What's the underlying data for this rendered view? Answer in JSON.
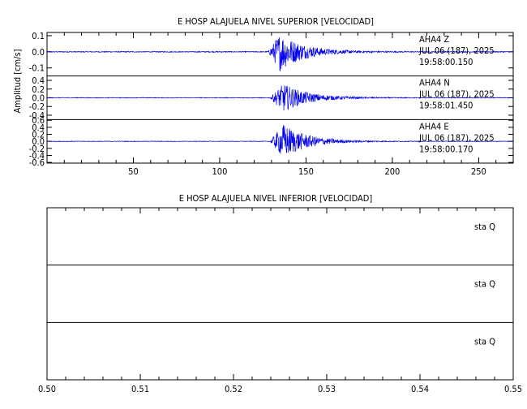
{
  "chart_data": [
    {
      "type": "line",
      "title": "E HOSP ALAJUELA NIVEL SUPERIOR [VELOCIDAD]",
      "ylabel": "Amplitud [cm/s]",
      "xlim": [
        0,
        270
      ],
      "x_ticks": [
        "50",
        "100",
        "150",
        "200",
        "250"
      ],
      "x_tick_values": [
        50,
        100,
        150,
        200,
        250
      ],
      "traces": [
        {
          "station": "AHA4",
          "component": "Z",
          "date": "JUL 06 (187), 2025",
          "time": "19:58:00.150",
          "ylim": [
            -0.15,
            0.12
          ],
          "y_ticks": [
            "0.1",
            "0.0",
            "-0.1"
          ],
          "y_tick_values": [
            0.1,
            0.0,
            -0.1
          ],
          "onset_x": 128,
          "peak_x": 135,
          "peak_amplitude": 0.12,
          "noise_amplitude": 0.003,
          "coda_end_x": 215
        },
        {
          "station": "AHA4",
          "component": "N",
          "date": "JUL 06 (187), 2025",
          "time": "19:58:01.450",
          "ylim": [
            -0.5,
            0.5
          ],
          "y_ticks": [
            "0.4",
            "0.2",
            "0.0",
            "-0.2",
            "-0.4"
          ],
          "y_tick_values": [
            0.4,
            0.2,
            0.0,
            -0.2,
            -0.4
          ],
          "onset_x": 129,
          "peak_x": 137,
          "peak_amplitude": 0.33,
          "noise_amplitude": 0.008,
          "coda_end_x": 215
        },
        {
          "station": "AHA4",
          "component": "E",
          "date": "JUL 06 (187), 2025",
          "time": "19:58:00.170",
          "ylim": [
            -0.62,
            0.62
          ],
          "y_ticks": [
            "0.6",
            "0.4",
            "0.2",
            "0.0",
            "-0.2",
            "-0.4",
            "-0.6"
          ],
          "y_tick_values": [
            0.6,
            0.4,
            0.2,
            0.0,
            -0.2,
            -0.4,
            -0.6
          ],
          "onset_x": 129,
          "peak_x": 137,
          "peak_amplitude": 0.5,
          "noise_amplitude": 0.008,
          "coda_end_x": 215
        }
      ],
      "line_color": "#0000ee"
    },
    {
      "type": "line",
      "title": "E HOSP ALAJUELA NIVEL INFERIOR [VELOCIDAD]",
      "xlim": [
        0.5,
        0.55
      ],
      "x_ticks": [
        "0.50",
        "0.51",
        "0.52",
        "0.53",
        "0.54",
        "0.55"
      ],
      "x_tick_values": [
        0.5,
        0.51,
        0.52,
        0.53,
        0.54,
        0.55
      ],
      "traces": [
        {
          "label_station": "sta",
          "label_component": "Q"
        },
        {
          "label_station": "sta",
          "label_component": "Q"
        },
        {
          "label_station": "sta",
          "label_component": "Q"
        }
      ]
    }
  ]
}
